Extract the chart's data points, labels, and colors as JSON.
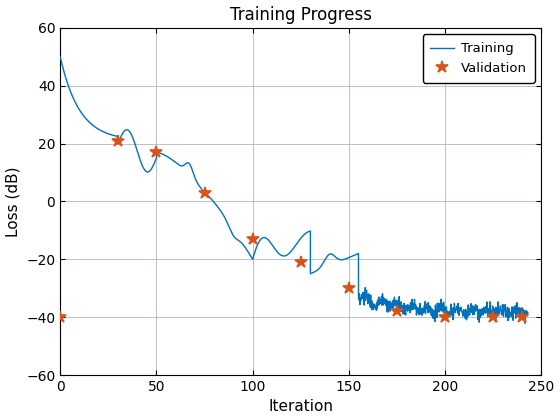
{
  "title": "Training Progress",
  "xlabel": "Iteration",
  "ylabel": "Loss (dB)",
  "xlim": [
    0,
    250
  ],
  "ylim": [
    -60,
    60
  ],
  "xticks": [
    0,
    50,
    100,
    150,
    200,
    250
  ],
  "yticks": [
    -60,
    -40,
    -20,
    0,
    20,
    40,
    60
  ],
  "train_color": "#0072BD",
  "val_color": "#D95319",
  "val_marker": "*",
  "val_marker_size": 9,
  "background_color": "#ffffff",
  "grid_color": "#b0b8c8",
  "val_x": [
    0,
    30,
    50,
    75,
    100,
    125,
    150,
    175,
    200,
    225,
    240
  ],
  "val_y": [
    -40,
    21,
    17,
    3,
    -13,
    -21,
    -30,
    -38,
    -40,
    -40,
    -40
  ],
  "title_fontsize": 12,
  "axis_fontsize": 11
}
